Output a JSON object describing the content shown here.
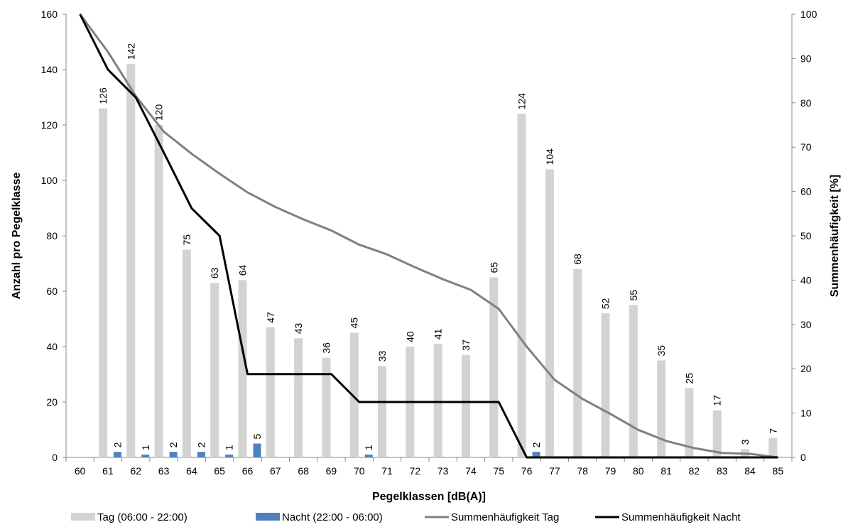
{
  "chart_data": {
    "type": "bar",
    "xlabel": "Pegelklassen [dB(A)]",
    "ylabel": "Anzahl pro Pegelklasse",
    "y2label": "Summenhäufigkeit [%]",
    "ylim": [
      0,
      160
    ],
    "y2lim": [
      0,
      100
    ],
    "yticks": [
      0,
      20,
      40,
      60,
      80,
      100,
      120,
      140,
      160
    ],
    "y2ticks": [
      0,
      10,
      20,
      30,
      40,
      50,
      60,
      70,
      80,
      90,
      100
    ],
    "categories": [
      "60",
      "61",
      "62",
      "63",
      "64",
      "65",
      "66",
      "67",
      "68",
      "69",
      "70",
      "71",
      "72",
      "73",
      "74",
      "75",
      "76",
      "77",
      "78",
      "79",
      "80",
      "81",
      "82",
      "83",
      "84",
      "85"
    ],
    "grid": false,
    "legend_position": "bottom",
    "series": [
      {
        "name": "Tag (06:00 - 22:00)",
        "kind": "bar",
        "axis": "left",
        "color": "#d3d3d3",
        "values": [
          0,
          126,
          142,
          120,
          75,
          63,
          64,
          47,
          43,
          36,
          45,
          33,
          40,
          41,
          37,
          65,
          124,
          104,
          68,
          52,
          55,
          35,
          25,
          17,
          3,
          7
        ],
        "labels": [
          "",
          "126",
          "142",
          "120",
          "75",
          "63",
          "64",
          "47",
          "43",
          "36",
          "45",
          "33",
          "40",
          "41",
          "37",
          "65",
          "124",
          "104",
          "68",
          "52",
          "55",
          "35",
          "25",
          "17",
          "3",
          "7"
        ]
      },
      {
        "name": "Nacht (22:00 - 06:00)",
        "kind": "bar",
        "axis": "left",
        "color": "#4f81bd",
        "values": [
          0,
          2,
          1,
          2,
          2,
          1,
          5,
          0,
          0,
          0,
          1,
          0,
          0,
          0,
          0,
          0,
          2,
          0,
          0,
          0,
          0,
          0,
          0,
          0,
          0,
          0
        ],
        "labels": [
          "",
          "2",
          "1",
          "2",
          "2",
          "1",
          "5",
          "",
          "",
          "",
          "1",
          "",
          "",
          "",
          "",
          "",
          "2",
          "",
          "",
          "",
          "",
          "",
          "",
          "",
          "",
          ""
        ]
      },
      {
        "name": "Summenhäufigkeit Tag",
        "kind": "line",
        "axis": "right",
        "color": "#808080",
        "values": [
          100,
          91.5,
          81.5,
          73.5,
          68.5,
          64,
          59.8,
          56.5,
          53.7,
          51.2,
          48,
          45.8,
          42.9,
          40.2,
          37.8,
          33.5,
          25,
          17.5,
          13.2,
          9.8,
          6.2,
          3.7,
          2.1,
          1,
          0.8,
          0
        ]
      },
      {
        "name": "Summenhäufigkeit Nacht",
        "kind": "line",
        "axis": "right",
        "color": "#000000",
        "values": [
          100,
          87.5,
          81.2,
          68.8,
          56.2,
          50,
          18.8,
          18.8,
          18.8,
          18.8,
          12.5,
          12.5,
          12.5,
          12.5,
          12.5,
          12.5,
          0,
          0,
          0,
          0,
          0,
          0,
          0,
          0,
          0,
          0
        ]
      }
    ]
  }
}
